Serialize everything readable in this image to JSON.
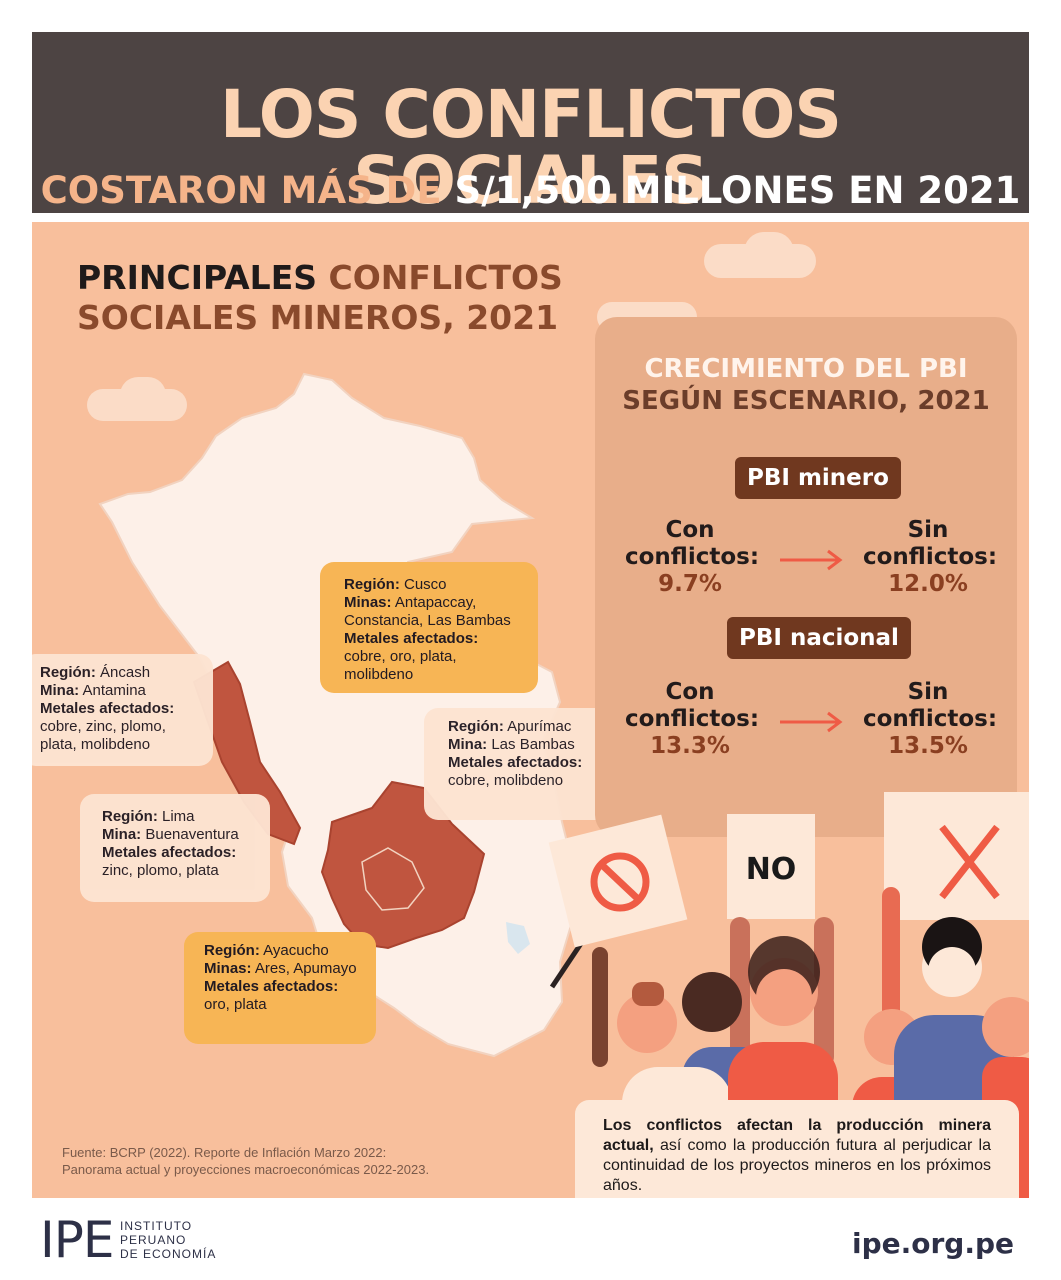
{
  "header": {
    "title": "LOS CONFLICTOS SOCIALES",
    "subtitle_part1": "COSTARON MÁS DE",
    "subtitle_part2": "S/1,500 MILLONES EN 2021"
  },
  "map_section": {
    "title_black": "PRINCIPALES",
    "title_brown_1": "CONFLICTOS",
    "title_brown_2": "SOCIALES MINEROS, 2021",
    "callouts": [
      {
        "region_label": "Región:",
        "region": "Cusco",
        "mine_label": "Minas:",
        "mine": "Antapaccay, Constancia, Las Bambas",
        "metals_label": "Metales afectados:",
        "metals": "cobre, oro, plata, molibdeno"
      },
      {
        "region_label": "Región:",
        "region": "Áncash",
        "mine_label": "Mina:",
        "mine": "Antamina",
        "metals_label": "Metales afectados:",
        "metals": "cobre, zinc, plomo, plata, molibdeno"
      },
      {
        "region_label": "Región:",
        "region": "Apurímac",
        "mine_label": "Mina:",
        "mine": "Las Bambas",
        "metals_label": "Metales afectados:",
        "metals": "cobre, molibdeno"
      },
      {
        "region_label": "Región:",
        "region": "Lima",
        "mine_label": "Mina:",
        "mine": "Buenaventura",
        "metals_label": "Metales afectados:",
        "metals": "zinc, plomo, plata"
      },
      {
        "region_label": "Región:",
        "region": "Ayacucho",
        "mine_label": "Minas:",
        "mine": "Ares, Apumayo",
        "metals_label": "Metales afectados:",
        "metals": "oro, plata"
      }
    ]
  },
  "stats": {
    "title_line1": "CRECIMIENTO DEL PBI",
    "title_line2": "SEGÚN ESCENARIO, 2021",
    "blocks": [
      {
        "label": "PBI minero",
        "with_label_1": "Con",
        "with_label_2": "conflictos:",
        "with_value": "9.7%",
        "without_label_1": "Sin",
        "without_label_2": "conflictos:",
        "without_value": "12.0%"
      },
      {
        "label": "PBI nacional",
        "with_label_1": "Con",
        "with_label_2": "conflictos:",
        "with_value": "13.3%",
        "without_label_1": "Sin",
        "without_label_2": "conflictos:",
        "without_value": "13.5%"
      }
    ],
    "arrow_color": "#ef5b45"
  },
  "signs": {
    "no_text": "NO"
  },
  "note": {
    "bold": "Los conflictos afectan la producción minera actual,",
    "rest": " así como la producción futura al perjudicar la continuidad de los proyectos mineros en los próximos años."
  },
  "source": {
    "line1": "Fuente: BCRP (2022). Reporte de Inflación Marzo 2022:",
    "line2": "Panorama actual y proyecciones macroeconómicas 2022-2023."
  },
  "footer": {
    "logo_letters": "IPE",
    "logo_line1": "INSTITUTO",
    "logo_line2": "PERUANO",
    "logo_line3": "DE ECONOMÍA",
    "website": "ipe.org.pe"
  },
  "colors": {
    "header_bg": "#4d4443",
    "panel_bg": "#f8bf9c",
    "highlight_region": "#c0553f",
    "pill_bg": "#70381f"
  }
}
